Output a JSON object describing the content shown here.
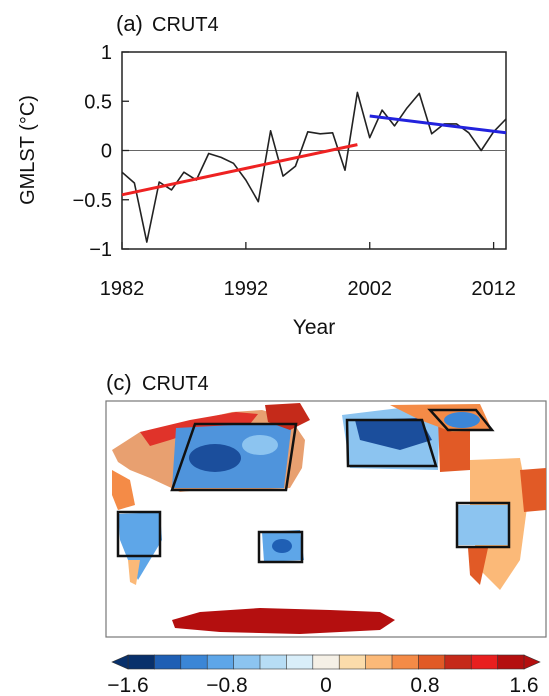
{
  "chart_data": [
    {
      "panel": "(a)",
      "title": "CRUT4",
      "type": "line",
      "xlabel": "Year",
      "ylabel": "GMLST (°C)",
      "xlim": [
        1982,
        2013
      ],
      "ylim": [
        -1,
        1
      ],
      "xticks": [
        "1982",
        "1992",
        "2002",
        "2012"
      ],
      "yticks": [
        "1",
        "0.5",
        "0",
        "−0.5",
        "−1"
      ],
      "series": [
        {
          "color": "#222222",
          "x": [
            1982,
            1983,
            1984,
            1985,
            1986,
            1987,
            1988,
            1989,
            1990,
            1991,
            1992,
            1993,
            1994,
            1995,
            1996,
            1997,
            1998,
            1999,
            2000,
            2001,
            2002,
            2003,
            2004,
            2005,
            2006,
            2007,
            2008,
            2009,
            2010,
            2011,
            2012,
            2013
          ],
          "values": [
            -0.22,
            -0.33,
            -0.93,
            -0.32,
            -0.4,
            -0.22,
            -0.3,
            -0.03,
            -0.07,
            -0.13,
            -0.3,
            -0.52,
            0.2,
            -0.26,
            -0.16,
            0.19,
            0.17,
            0.18,
            -0.2,
            0.59,
            0.13,
            0.41,
            0.25,
            0.43,
            0.58,
            0.17,
            0.27,
            0.27,
            0.18,
            0.0,
            0.19,
            0.32
          ]
        },
        {
          "color": "#ee2222",
          "x": [
            1982,
            2001
          ],
          "values": [
            -0.45,
            0.06
          ]
        },
        {
          "color": "#2222dd",
          "x": [
            2002,
            2013
          ],
          "values": [
            0.35,
            0.18
          ]
        }
      ],
      "zero_line": true
    },
    {
      "panel": "(c)",
      "title": "CRUT4",
      "type": "heatmap",
      "colorbar": {
        "ticks": [
          "−1.6",
          "−0.8",
          "0",
          "0.8",
          "1.6"
        ],
        "colors": [
          "#08306b",
          "#1f5fb4",
          "#3b86d6",
          "#5ea6e8",
          "#8cc4f0",
          "#b7ddf5",
          "#d9eef9",
          "#f5f0e6",
          "#fbdcab",
          "#fbb978",
          "#f48b47",
          "#e15a26",
          "#c52a1a",
          "#e81f1f",
          "#b40f0f"
        ]
      }
    }
  ]
}
